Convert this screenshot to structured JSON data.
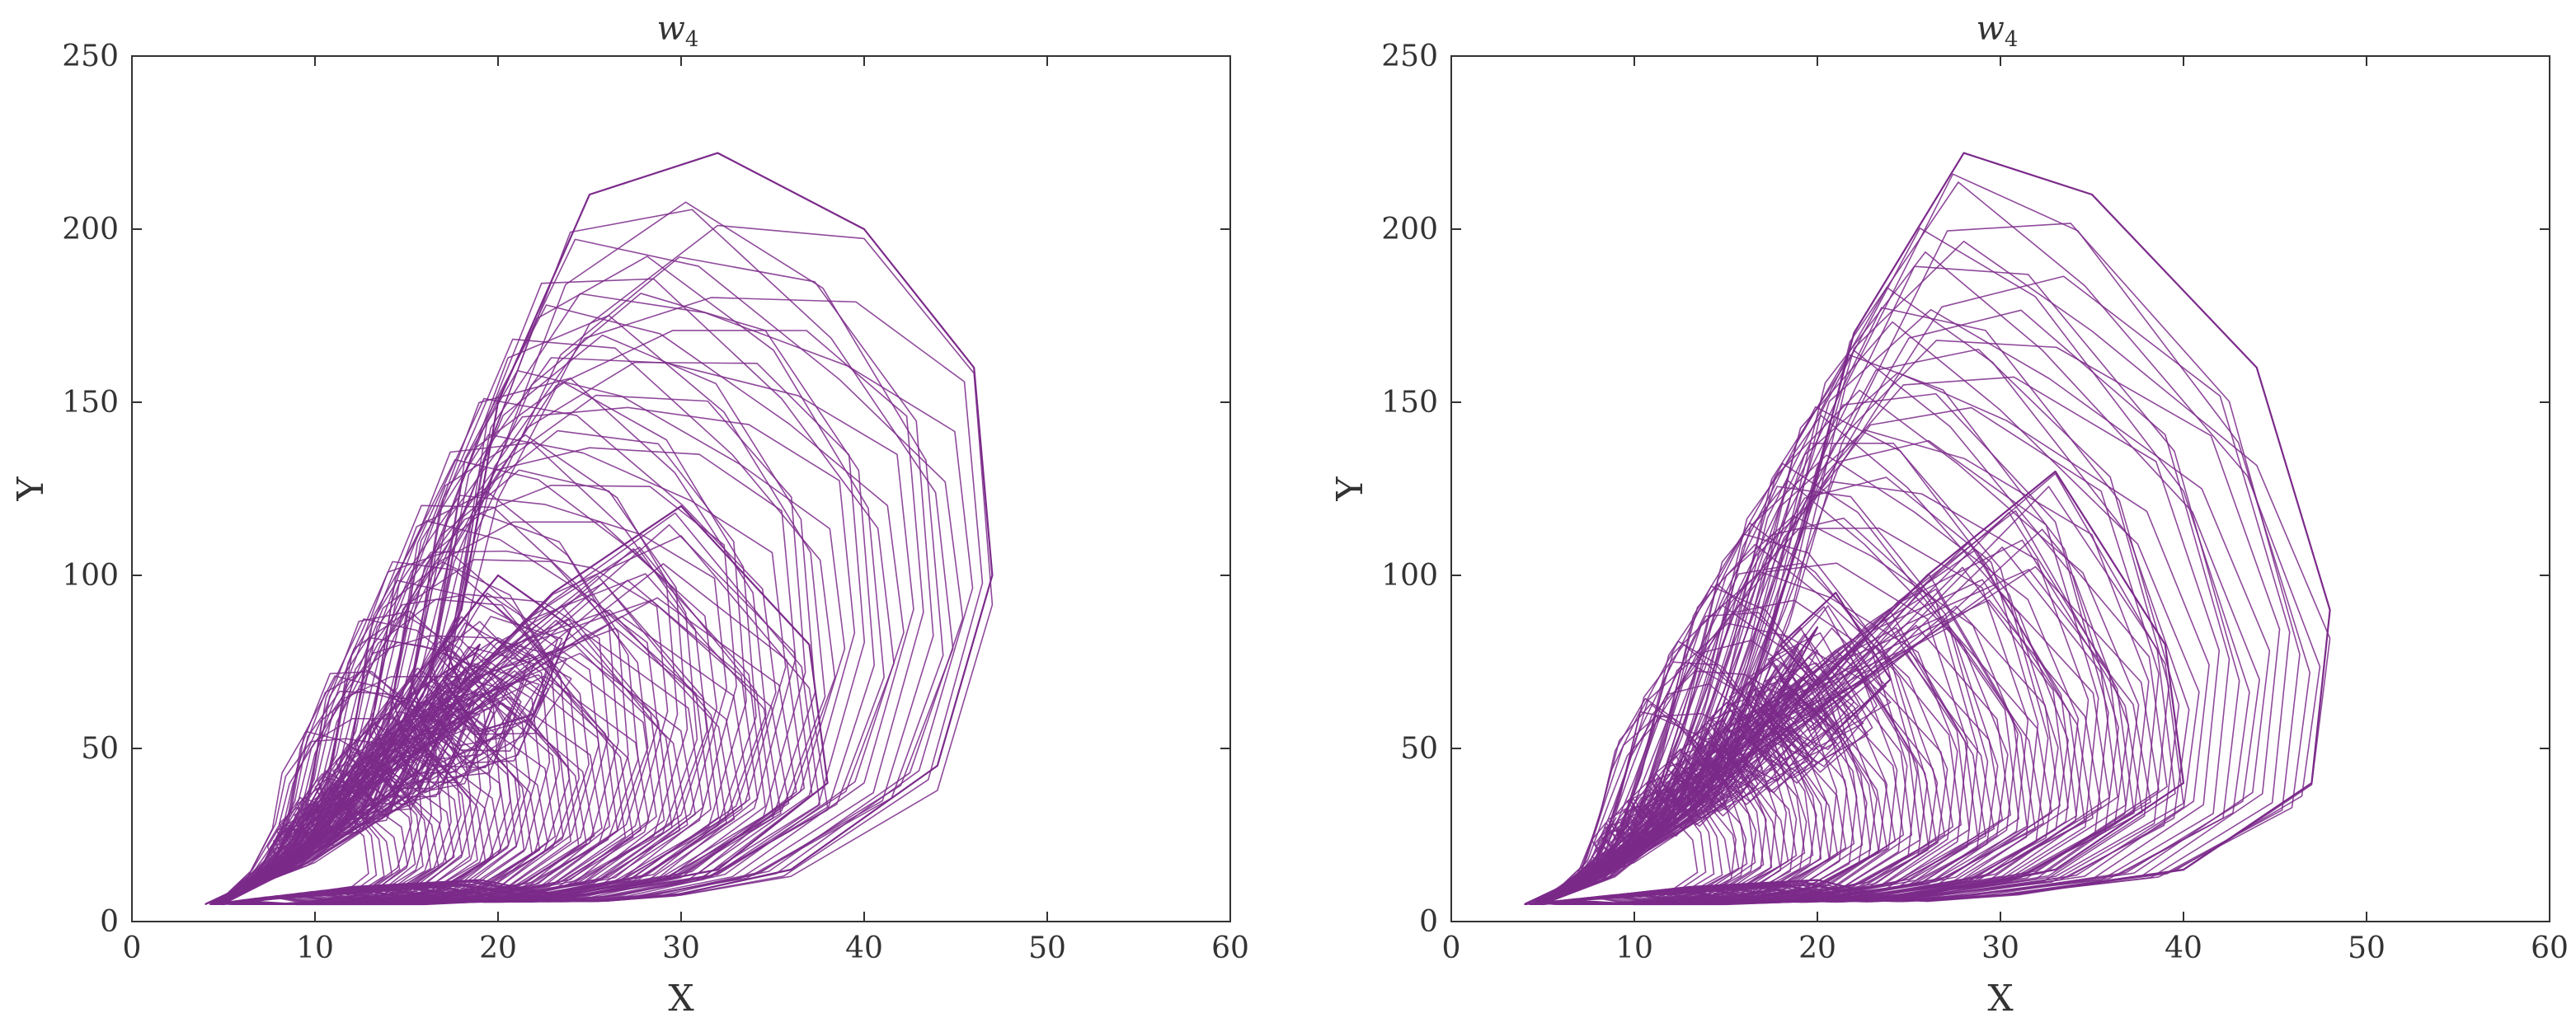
{
  "colors": {
    "trajectory": "#7b2a8a",
    "axis": "#333333",
    "background": "#ffffff"
  },
  "chart_data": [
    {
      "type": "line",
      "title": "w",
      "title_subscript": "4",
      "xlabel": "X",
      "ylabel": "Y",
      "xlim": [
        0,
        60
      ],
      "ylim": [
        0,
        250
      ],
      "xticks": [
        "0",
        "10",
        "20",
        "30",
        "40",
        "50",
        "60"
      ],
      "yticks": [
        "0",
        "50",
        "100",
        "150",
        "200",
        "250"
      ],
      "grid": false,
      "series": [
        {
          "color": "#7b2a8a",
          "x": [
            4,
            10,
            16,
            19,
            17,
            19,
            22,
            24,
            20,
            17,
            18,
            23,
            30,
            37,
            38,
            32,
            25,
            20,
            16,
            12,
            9,
            6,
            5,
            8,
            13,
            18,
            20,
            25,
            32,
            40,
            46,
            47,
            44,
            36,
            30,
            26,
            25,
            24,
            19,
            12,
            8,
            5
          ],
          "y": [
            5,
            20,
            45,
            80,
            70,
            55,
            60,
            85,
            100,
            80,
            68,
            95,
            120,
            80,
            40,
            15,
            8,
            6,
            5,
            5,
            5,
            6,
            5,
            15,
            40,
            90,
            150,
            210,
            222,
            200,
            160,
            100,
            45,
            15,
            8,
            6,
            6,
            7,
            12,
            10,
            7,
            5
          ]
        }
      ]
    },
    {
      "type": "line",
      "title": "w",
      "title_subscript": "4",
      "xlabel": "X",
      "ylabel": "Y",
      "xlim": [
        0,
        60
      ],
      "ylim": [
        0,
        250
      ],
      "xticks": [
        "0",
        "10",
        "20",
        "30",
        "40",
        "50",
        "60"
      ],
      "yticks": [
        "0",
        "50",
        "100",
        "150",
        "200",
        "250"
      ],
      "grid": false,
      "series": [
        {
          "color": "#7b2a8a",
          "x": [
            4,
            10,
            16,
            20,
            18,
            21,
            24,
            21,
            18,
            20,
            26,
            33,
            39,
            40,
            33,
            26,
            20,
            15,
            10,
            7,
            5,
            9,
            15,
            19,
            22,
            28,
            35,
            44,
            48,
            47,
            40,
            31,
            26,
            24,
            20,
            13,
            8,
            4
          ],
          "y": [
            5,
            20,
            45,
            85,
            70,
            55,
            70,
            95,
            80,
            68,
            100,
            130,
            80,
            40,
            15,
            8,
            6,
            5,
            5,
            6,
            5,
            15,
            45,
            110,
            170,
            222,
            210,
            160,
            90,
            40,
            15,
            8,
            6,
            7,
            12,
            10,
            7,
            5
          ]
        }
      ]
    }
  ]
}
